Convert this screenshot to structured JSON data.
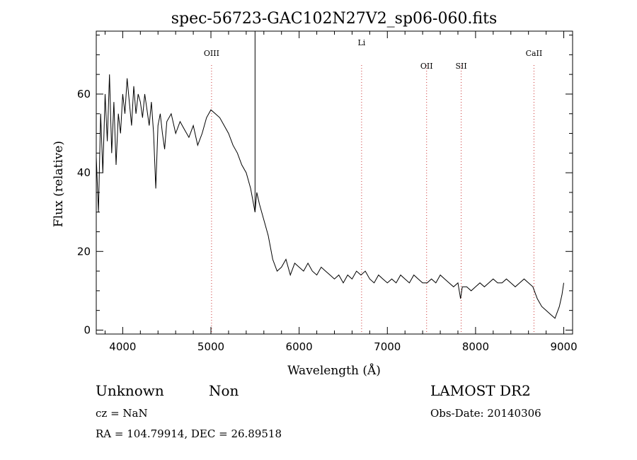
{
  "chart_data": {
    "type": "line",
    "title": "spec-56723-GAC102N27V2_sp06-060.fits",
    "xlabel": "Wavelength (Å)",
    "ylabel": "Flux (relative)",
    "xlim": [
      3700,
      9100
    ],
    "ylim": [
      -1,
      76
    ],
    "x_ticks": [
      4000,
      5000,
      6000,
      7000,
      8000,
      9000
    ],
    "y_ticks": [
      0,
      20,
      40,
      60
    ],
    "lines": [
      {
        "label": "OIII",
        "x": 5007
      },
      {
        "label": "Li",
        "x": 6708
      },
      {
        "label": "OII",
        "x": 7445
      },
      {
        "label": "SII",
        "x": 7837
      },
      {
        "label": "CaII",
        "x": 8662
      }
    ],
    "spike_x": 5500,
    "series": [
      {
        "x": [
          3700,
          3725,
          3750,
          3775,
          3800,
          3825,
          3850,
          3875,
          3900,
          3925,
          3950,
          3975,
          4000,
          4025,
          4050,
          4075,
          4100,
          4125,
          4150,
          4175,
          4200,
          4225,
          4250,
          4275,
          4300,
          4325,
          4350,
          4375,
          4400,
          4425,
          4450,
          4475,
          4500,
          4550,
          4600,
          4650,
          4700,
          4750,
          4800,
          4850,
          4900,
          4950,
          5000,
          5050,
          5100,
          5150,
          5200,
          5250,
          5300,
          5350,
          5400,
          5450,
          5500,
          5520,
          5550,
          5600,
          5650,
          5700,
          5750,
          5800,
          5850,
          5900,
          5950,
          6000,
          6050,
          6100,
          6150,
          6200,
          6250,
          6300,
          6350,
          6400,
          6450,
          6500,
          6550,
          6600,
          6650,
          6700,
          6750,
          6800,
          6850,
          6900,
          6950,
          7000,
          7050,
          7100,
          7150,
          7200,
          7250,
          7300,
          7350,
          7400,
          7450,
          7500,
          7550,
          7600,
          7650,
          7700,
          7750,
          7800,
          7830,
          7850,
          7900,
          7950,
          8000,
          8050,
          8100,
          8150,
          8200,
          8250,
          8300,
          8350,
          8400,
          8450,
          8500,
          8550,
          8600,
          8650,
          8700,
          8750,
          8800,
          8850,
          8900,
          8950,
          8980,
          9000
        ],
        "y": [
          44,
          30,
          55,
          40,
          60,
          48,
          65,
          45,
          58,
          42,
          55,
          50,
          60,
          55,
          64,
          58,
          52,
          62,
          55,
          60,
          58,
          54,
          60,
          56,
          52,
          58,
          50,
          36,
          52,
          55,
          50,
          46,
          53,
          55,
          50,
          53,
          51,
          49,
          52,
          47,
          50,
          54,
          56,
          55,
          54,
          52,
          50,
          47,
          45,
          42,
          40,
          36,
          30,
          35,
          32,
          28,
          24,
          18,
          15,
          16,
          18,
          14,
          17,
          16,
          15,
          17,
          15,
          14,
          16,
          15,
          14,
          13,
          14,
          12,
          14,
          13,
          15,
          14,
          15,
          13,
          12,
          14,
          13,
          12,
          13,
          12,
          14,
          13,
          12,
          14,
          13,
          12,
          12,
          13,
          12,
          14,
          13,
          12,
          11,
          12,
          8,
          11,
          11,
          10,
          11,
          12,
          11,
          12,
          13,
          12,
          12,
          13,
          12,
          11,
          12,
          13,
          12,
          11,
          8,
          6,
          5,
          4,
          3,
          6,
          9,
          12
        ]
      }
    ]
  },
  "info": {
    "class_label": "Unknown",
    "subclass_label": "Non",
    "survey": "LAMOST DR2",
    "cz": "cz = NaN",
    "obs_date": "Obs-Date: 20140306",
    "coords": "RA = 104.79914, DEC =  26.89518"
  }
}
